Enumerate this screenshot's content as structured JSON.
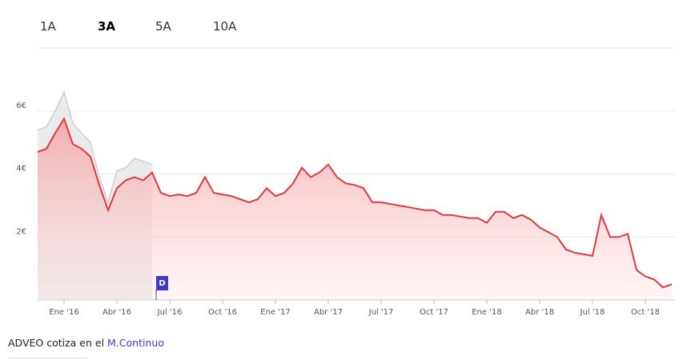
{
  "tabs": [
    "1A",
    "3A",
    "5A",
    "10A"
  ],
  "selected_tab": "3A",
  "chart_data": {
    "type": "area",
    "grid": true,
    "categories": [
      null,
      null,
      null,
      "Ene '16",
      null,
      null,
      null,
      null,
      null,
      "Abr '16",
      null,
      null,
      null,
      null,
      null,
      "Jul '16",
      null,
      null,
      null,
      null,
      null,
      "Oct '16",
      null,
      null,
      null,
      null,
      null,
      "Ene '17",
      null,
      null,
      null,
      null,
      null,
      "Abr '17",
      null,
      null,
      null,
      null,
      null,
      "Jul '17",
      null,
      null,
      null,
      null,
      null,
      "Oct '17",
      null,
      null,
      null,
      null,
      null,
      "Ene '18",
      null,
      null,
      null,
      null,
      null,
      "Abr '18",
      null,
      null,
      null,
      null,
      null,
      "Jul '18",
      null,
      null,
      null,
      null,
      null,
      "Oct '18",
      null,
      null,
      null
    ],
    "series": [
      {
        "color": "#e0393e",
        "values": [
          4.7,
          4.8,
          5.3,
          5.75,
          4.95,
          4.8,
          4.55,
          3.65,
          2.85,
          3.55,
          3.8,
          3.9,
          3.8,
          4.05,
          3.4,
          3.3,
          3.35,
          3.3,
          3.4,
          3.9,
          3.4,
          3.35,
          3.3,
          3.2,
          3.1,
          3.2,
          3.55,
          3.3,
          3.4,
          3.7,
          4.2,
          3.9,
          4.05,
          4.3,
          3.9,
          3.7,
          3.65,
          3.55,
          3.1,
          3.1,
          3.05,
          3.0,
          2.95,
          2.9,
          2.85,
          2.85,
          2.7,
          2.7,
          2.65,
          2.6,
          2.6,
          2.45,
          2.8,
          2.8,
          2.6,
          2.7,
          2.55,
          2.3,
          2.15,
          2.0,
          1.6,
          1.5,
          1.45,
          1.4,
          2.7,
          2.0,
          2.0,
          2.1,
          0.95,
          0.75,
          0.65,
          0.4,
          0.5
        ]
      },
      {
        "color": "#cfcfcf",
        "values": [
          5.4,
          5.5,
          6.0,
          6.6,
          5.6,
          5.3,
          5.0,
          3.9,
          3.1,
          4.1,
          4.2,
          4.5,
          4.4,
          4.3,
          null,
          null,
          null,
          null,
          null,
          null,
          null,
          null,
          null,
          null,
          null,
          null,
          null,
          null,
          null,
          null,
          null,
          null,
          null,
          null,
          null,
          null,
          null,
          null,
          null,
          null,
          null,
          null,
          null,
          null,
          null,
          null,
          null,
          null,
          null,
          null,
          null,
          null,
          null,
          null,
          null,
          null,
          null,
          null,
          null,
          null,
          null,
          null,
          null,
          null,
          null,
          null,
          null,
          null,
          null,
          null,
          null,
          null,
          null
        ]
      }
    ],
    "ylim": [
      0,
      8
    ],
    "yticks": [
      {
        "value": 2,
        "label": "2€"
      },
      {
        "value": 4,
        "label": "4€"
      },
      {
        "value": 6,
        "label": "6€"
      }
    ],
    "annotations": [
      {
        "text": "D"
      }
    ]
  },
  "footer": {
    "text": "ADVEO cotiza en el",
    "link": "M.Continuo"
  }
}
